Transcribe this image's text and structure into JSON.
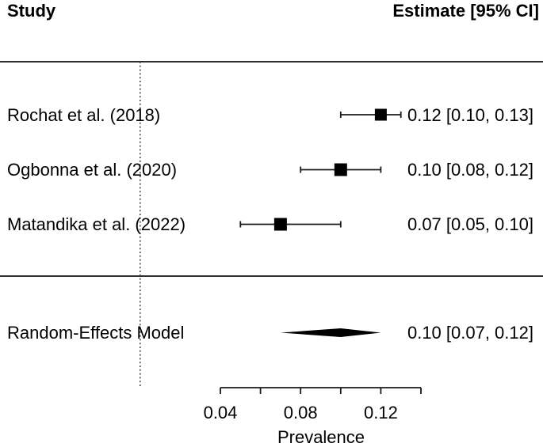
{
  "header": {
    "study_col": "Study",
    "estimate_col": "Estimate [95% CI]"
  },
  "chart_data": {
    "type": "forest_plot",
    "title": "",
    "xlabel": "Prevalence",
    "xlim": [
      0.04,
      0.14
    ],
    "x_ticks": [
      0.04,
      0.06,
      0.08,
      0.1,
      0.12,
      0.14
    ],
    "x_tick_labels": [
      {
        "value": 0.04,
        "label": "0.04"
      },
      {
        "value": 0.08,
        "label": "0.08"
      },
      {
        "value": 0.12,
        "label": "0.12"
      }
    ],
    "reference_line": 0,
    "studies": [
      {
        "label": "Rochat et al. (2018)",
        "estimate": 0.12,
        "ci_lower": 0.1,
        "ci_upper": 0.13,
        "annotation": "0.12 [0.10, 0.13]"
      },
      {
        "label": "Ogbonna et al. (2020)",
        "estimate": 0.1,
        "ci_lower": 0.08,
        "ci_upper": 0.12,
        "annotation": "0.10 [0.08, 0.12]"
      },
      {
        "label": "Matandika et al. (2022)",
        "estimate": 0.07,
        "ci_lower": 0.05,
        "ci_upper": 0.1,
        "annotation": "0.07 [0.05, 0.10]"
      }
    ],
    "summary": {
      "label": "Random-Effects Model",
      "estimate": 0.1,
      "ci_lower": 0.07,
      "ci_upper": 0.12,
      "annotation": "0.10 [0.07, 0.12]"
    }
  },
  "colors": {
    "marker": "#000000",
    "line": "#1a1a1a",
    "reference_line": "#4a4a4a",
    "separator": "#2e2e2e",
    "text": "#000000"
  }
}
